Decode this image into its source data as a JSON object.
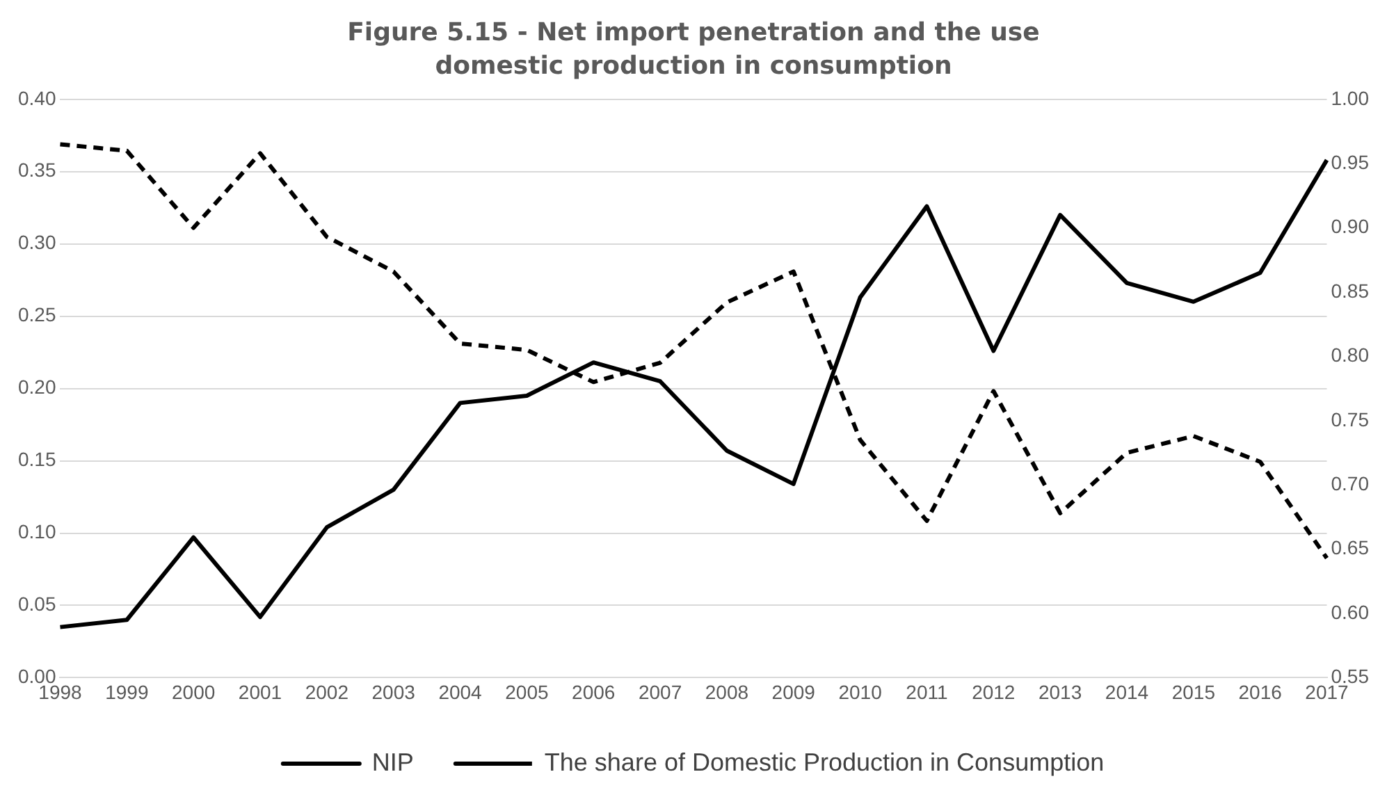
{
  "chart_data": {
    "type": "line",
    "title": "Figure 5.15 - Net import penetration and the use domestic production in consumption",
    "categories": [
      "1998",
      "1999",
      "2000",
      "2001",
      "2002",
      "2003",
      "2004",
      "2005",
      "2006",
      "2007",
      "2008",
      "2009",
      "2010",
      "2011",
      "2012",
      "2013",
      "2014",
      "2015",
      "2016",
      "2017"
    ],
    "series": [
      {
        "name": "NIP",
        "color": "#000000",
        "line_style": "solid",
        "values": [
          0.035,
          0.04,
          0.097,
          0.042,
          0.104,
          0.13,
          0.19,
          0.195,
          0.218,
          0.205,
          0.157,
          0.134,
          0.263,
          0.326,
          0.226,
          0.32,
          0.273,
          0.26,
          0.28,
          0.358
        ]
      },
      {
        "name": "The share of Domestic Production in Consumption",
        "color": "#000000",
        "line_style": "dashed",
        "axis": "y2",
        "values": [
          0.965,
          0.96,
          0.9,
          0.958,
          0.893,
          0.866,
          0.81,
          0.805,
          0.78,
          0.795,
          0.842,
          0.866,
          0.735,
          0.672,
          0.773,
          0.678,
          0.725,
          0.738,
          0.718,
          0.643
        ]
      }
    ],
    "ylim": [
      0,
      0.4
    ],
    "yticks": [
      {
        "value": 0,
        "label": "0.00"
      },
      {
        "value": 0.05,
        "label": "0.05"
      },
      {
        "value": 0.1,
        "label": "0.10"
      },
      {
        "value": 0.15,
        "label": "0.15"
      },
      {
        "value": 0.2,
        "label": "0.20"
      },
      {
        "value": 0.25,
        "label": "0.25"
      },
      {
        "value": 0.3,
        "label": "0.30"
      },
      {
        "value": 0.35,
        "label": "0.35"
      },
      {
        "value": 0.4,
        "label": "0.40"
      }
    ],
    "y2lim": [
      0.55,
      1
    ],
    "y2ticks": [
      {
        "value": 0.55,
        "label": "0.55"
      },
      {
        "value": 0.6,
        "label": "0.60"
      },
      {
        "value": 0.65,
        "label": "0.65"
      },
      {
        "value": 0.7,
        "label": "0.70"
      },
      {
        "value": 0.75,
        "label": "0.75"
      },
      {
        "value": 0.8,
        "label": "0.80"
      },
      {
        "value": 0.85,
        "label": "0.85"
      },
      {
        "value": 0.9,
        "label": "0.90"
      },
      {
        "value": 0.95,
        "label": "0.95"
      },
      {
        "value": 1,
        "label": "1.00"
      }
    ],
    "grid": "y",
    "legend": "bottom",
    "marker": "none"
  }
}
